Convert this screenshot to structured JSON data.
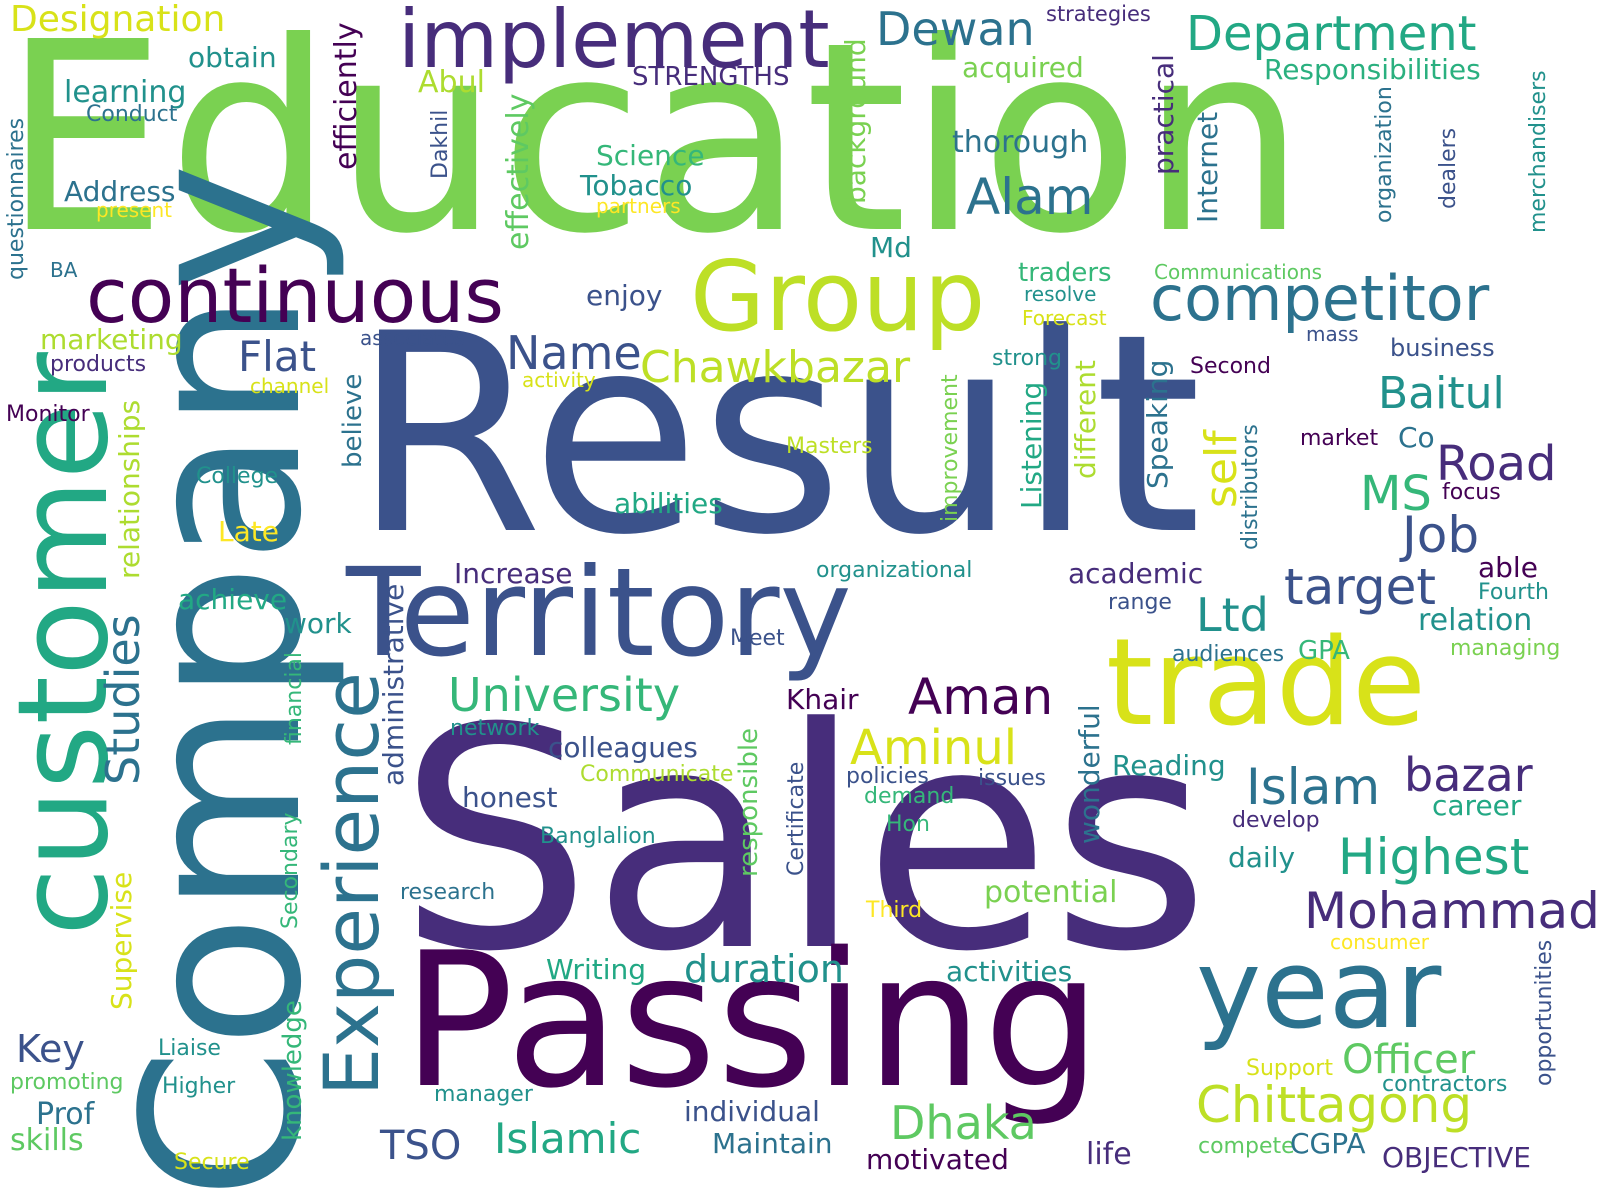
{
  "words": [
    {
      "text": "Education",
      "color": "#7ad151"
    },
    {
      "text": "Result",
      "color": "#3b528b"
    },
    {
      "text": "Sales",
      "color": "#472d7b"
    },
    {
      "text": "Passing",
      "color": "#440154"
    },
    {
      "text": "Company",
      "color": "#2c728e"
    },
    {
      "text": "customer",
      "color": "#22a884"
    },
    {
      "text": "Territory",
      "color": "#3b528b"
    },
    {
      "text": "trade",
      "color": "#d8e219"
    },
    {
      "text": "year",
      "color": "#2c728e"
    },
    {
      "text": "Experience",
      "color": "#2c728e"
    },
    {
      "text": "Group",
      "color": "#bddf26"
    },
    {
      "text": "implement",
      "color": "#472d7b"
    },
    {
      "text": "continuous",
      "color": "#440154"
    },
    {
      "text": "competitor",
      "color": "#2c728e"
    },
    {
      "text": "Chittagong",
      "color": "#bddf26"
    },
    {
      "text": "Designation",
      "color": "#d8e219"
    },
    {
      "text": "Dewan",
      "color": "#2c728e"
    },
    {
      "text": "Department",
      "color": "#22a884"
    },
    {
      "text": "Responsibilities",
      "color": "#2ab07f"
    },
    {
      "text": "STRENGTHS",
      "color": "#472d7b"
    },
    {
      "text": "strategies",
      "color": "#472d7b"
    },
    {
      "text": "obtain",
      "color": "#21918c"
    },
    {
      "text": "learning",
      "color": "#21918c"
    },
    {
      "text": "Conduct",
      "color": "#2c728e"
    },
    {
      "text": "Abul",
      "color": "#addc30"
    },
    {
      "text": "acquired",
      "color": "#7ad151"
    },
    {
      "text": "efficiently",
      "color": "#440154"
    },
    {
      "text": "effectively",
      "color": "#5ec962"
    },
    {
      "text": "Dakhil",
      "color": "#3b528b"
    },
    {
      "text": "background",
      "color": "#7ad151"
    },
    {
      "text": "thorough",
      "color": "#2c728e"
    },
    {
      "text": "practical",
      "color": "#472d7b"
    },
    {
      "text": "Internet",
      "color": "#2c728e"
    },
    {
      "text": "organization",
      "color": "#2c728e"
    },
    {
      "text": "dealers",
      "color": "#3b528b"
    },
    {
      "text": "merchandisers",
      "color": "#21918c"
    },
    {
      "text": "questionnaires",
      "color": "#2c728e"
    },
    {
      "text": "Science",
      "color": "#35b779"
    },
    {
      "text": "Tobacco",
      "color": "#21918c"
    },
    {
      "text": "Address",
      "color": "#2c728e"
    },
    {
      "text": "present",
      "color": "#fde725"
    },
    {
      "text": "partners",
      "color": "#fde725"
    },
    {
      "text": "Alam",
      "color": "#2c728e"
    },
    {
      "text": "Md",
      "color": "#21918c"
    },
    {
      "text": "BA",
      "color": "#2c728e"
    },
    {
      "text": "traders",
      "color": "#35b779"
    },
    {
      "text": "Communications",
      "color": "#5ec962"
    },
    {
      "text": "resolve",
      "color": "#21918c"
    },
    {
      "text": "Forecast",
      "color": "#d8e219"
    },
    {
      "text": "enjoy",
      "color": "#3b528b"
    },
    {
      "text": "marketing",
      "color": "#addc30"
    },
    {
      "text": "associates",
      "color": "#3b528b"
    },
    {
      "text": "Flat",
      "color": "#3b528b"
    },
    {
      "text": "Name",
      "color": "#3b528b"
    },
    {
      "text": "mass",
      "color": "#3b528b"
    },
    {
      "text": "business",
      "color": "#3b528b"
    },
    {
      "text": "products",
      "color": "#472d7b"
    },
    {
      "text": "Chawkbazar",
      "color": "#bddf26"
    },
    {
      "text": "strong",
      "color": "#21918c"
    },
    {
      "text": "Second",
      "color": "#440154"
    },
    {
      "text": "channel",
      "color": "#d8e219"
    },
    {
      "text": "activity",
      "color": "#d8e219"
    },
    {
      "text": "Baitul",
      "color": "#21918c"
    },
    {
      "text": "Monitor",
      "color": "#440154"
    },
    {
      "text": "relationships",
      "color": "#addc30"
    },
    {
      "text": "believe",
      "color": "#2c728e"
    },
    {
      "text": "improvement",
      "color": "#7ad151"
    },
    {
      "text": "Listening",
      "color": "#22a884"
    },
    {
      "text": "different",
      "color": "#addc30"
    },
    {
      "text": "Speaking",
      "color": "#2c728e"
    },
    {
      "text": "Masters",
      "color": "#bddf26"
    },
    {
      "text": "self",
      "color": "#d8e219"
    },
    {
      "text": "market",
      "color": "#440154"
    },
    {
      "text": "Co",
      "color": "#2c728e"
    },
    {
      "text": "Road",
      "color": "#472d7b"
    },
    {
      "text": "distributors",
      "color": "#2c728e"
    },
    {
      "text": "focus",
      "color": "#440154"
    },
    {
      "text": "MS",
      "color": "#35b779"
    },
    {
      "text": "College",
      "color": "#21918c"
    },
    {
      "text": "abilities",
      "color": "#22a884"
    },
    {
      "text": "Late",
      "color": "#fde725"
    },
    {
      "text": "Job",
      "color": "#3b528b"
    },
    {
      "text": "organizational",
      "color": "#21918c"
    },
    {
      "text": "Increase",
      "color": "#472d7b"
    },
    {
      "text": "academic",
      "color": "#472d7b"
    },
    {
      "text": "able",
      "color": "#440154"
    },
    {
      "text": "achieve",
      "color": "#22a884"
    },
    {
      "text": "target",
      "color": "#3b528b"
    },
    {
      "text": "Fourth",
      "color": "#21918c"
    },
    {
      "text": "Studies",
      "color": "#2c728e"
    },
    {
      "text": "range",
      "color": "#3b528b"
    },
    {
      "text": "relation",
      "color": "#21918c"
    },
    {
      "text": "work",
      "color": "#21918c"
    },
    {
      "text": "administrative",
      "color": "#3b528b"
    },
    {
      "text": "Meet",
      "color": "#3b528b"
    },
    {
      "text": "Ltd",
      "color": "#21918c"
    },
    {
      "text": "audiences",
      "color": "#2c728e"
    },
    {
      "text": "GPA",
      "color": "#35b779"
    },
    {
      "text": "managing",
      "color": "#7ad151"
    },
    {
      "text": "University",
      "color": "#35b779"
    },
    {
      "text": "financial",
      "color": "#35b779"
    },
    {
      "text": "Aman",
      "color": "#440154"
    },
    {
      "text": "Khair",
      "color": "#440154"
    },
    {
      "text": "network",
      "color": "#21918c"
    },
    {
      "text": "Aminul",
      "color": "#d8e219"
    },
    {
      "text": "responsible",
      "color": "#5ec962"
    },
    {
      "text": "colleagues",
      "color": "#3b528b"
    },
    {
      "text": "Communicate",
      "color": "#addc30"
    },
    {
      "text": "Certificate",
      "color": "#3b528b"
    },
    {
      "text": "policies",
      "color": "#3b528b"
    },
    {
      "text": "issues",
      "color": "#3b528b"
    },
    {
      "text": "Reading",
      "color": "#21918c"
    },
    {
      "text": "bazar",
      "color": "#472d7b"
    },
    {
      "text": "Islam",
      "color": "#2c728e"
    },
    {
      "text": "honest",
      "color": "#3b528b"
    },
    {
      "text": "demand",
      "color": "#35b779"
    },
    {
      "text": "career",
      "color": "#22a884"
    },
    {
      "text": "Banglalion",
      "color": "#21918c"
    },
    {
      "text": "Hon",
      "color": "#35b779"
    },
    {
      "text": "develop",
      "color": "#472d7b"
    },
    {
      "text": "wonderful",
      "color": "#2c728e"
    },
    {
      "text": "daily",
      "color": "#21918c"
    },
    {
      "text": "Highest",
      "color": "#22a884"
    },
    {
      "text": "Secondary",
      "color": "#35b779"
    },
    {
      "text": "Supervise",
      "color": "#d8e219"
    },
    {
      "text": "research",
      "color": "#2c728e"
    },
    {
      "text": "potential",
      "color": "#7ad151"
    },
    {
      "text": "Third",
      "color": "#fde725"
    },
    {
      "text": "Mohammad",
      "color": "#472d7b"
    },
    {
      "text": "consumer",
      "color": "#fde725"
    },
    {
      "text": "Writing",
      "color": "#22a884"
    },
    {
      "text": "duration",
      "color": "#21918c"
    },
    {
      "text": "activities",
      "color": "#21918c"
    },
    {
      "text": "opportunities",
      "color": "#3b528b"
    },
    {
      "text": "Key",
      "color": "#3b528b"
    },
    {
      "text": "knowledge",
      "color": "#35b779"
    },
    {
      "text": "Liaise",
      "color": "#21918c"
    },
    {
      "text": "Support",
      "color": "#d8e219"
    },
    {
      "text": "Officer",
      "color": "#5ec962"
    },
    {
      "text": "promoting",
      "color": "#5ec962"
    },
    {
      "text": "Higher",
      "color": "#21918c"
    },
    {
      "text": "contractors",
      "color": "#21918c"
    },
    {
      "text": "manager",
      "color": "#21918c"
    },
    {
      "text": "Prof",
      "color": "#2c728e"
    },
    {
      "text": "individual",
      "color": "#3b528b"
    },
    {
      "text": "Dhaka",
      "color": "#5ec962"
    },
    {
      "text": "skills",
      "color": "#5ec962"
    },
    {
      "text": "TSO",
      "color": "#3b528b"
    },
    {
      "text": "Islamic",
      "color": "#22a884"
    },
    {
      "text": "Maintain",
      "color": "#2c728e"
    },
    {
      "text": "compete",
      "color": "#5ec962"
    },
    {
      "text": "CGPA",
      "color": "#2c728e"
    },
    {
      "text": "Secure",
      "color": "#d8e219"
    },
    {
      "text": "motivated",
      "color": "#440154"
    },
    {
      "text": "life",
      "color": "#472d7b"
    },
    {
      "text": "OBJECTIVE",
      "color": "#472d7b"
    }
  ]
}
